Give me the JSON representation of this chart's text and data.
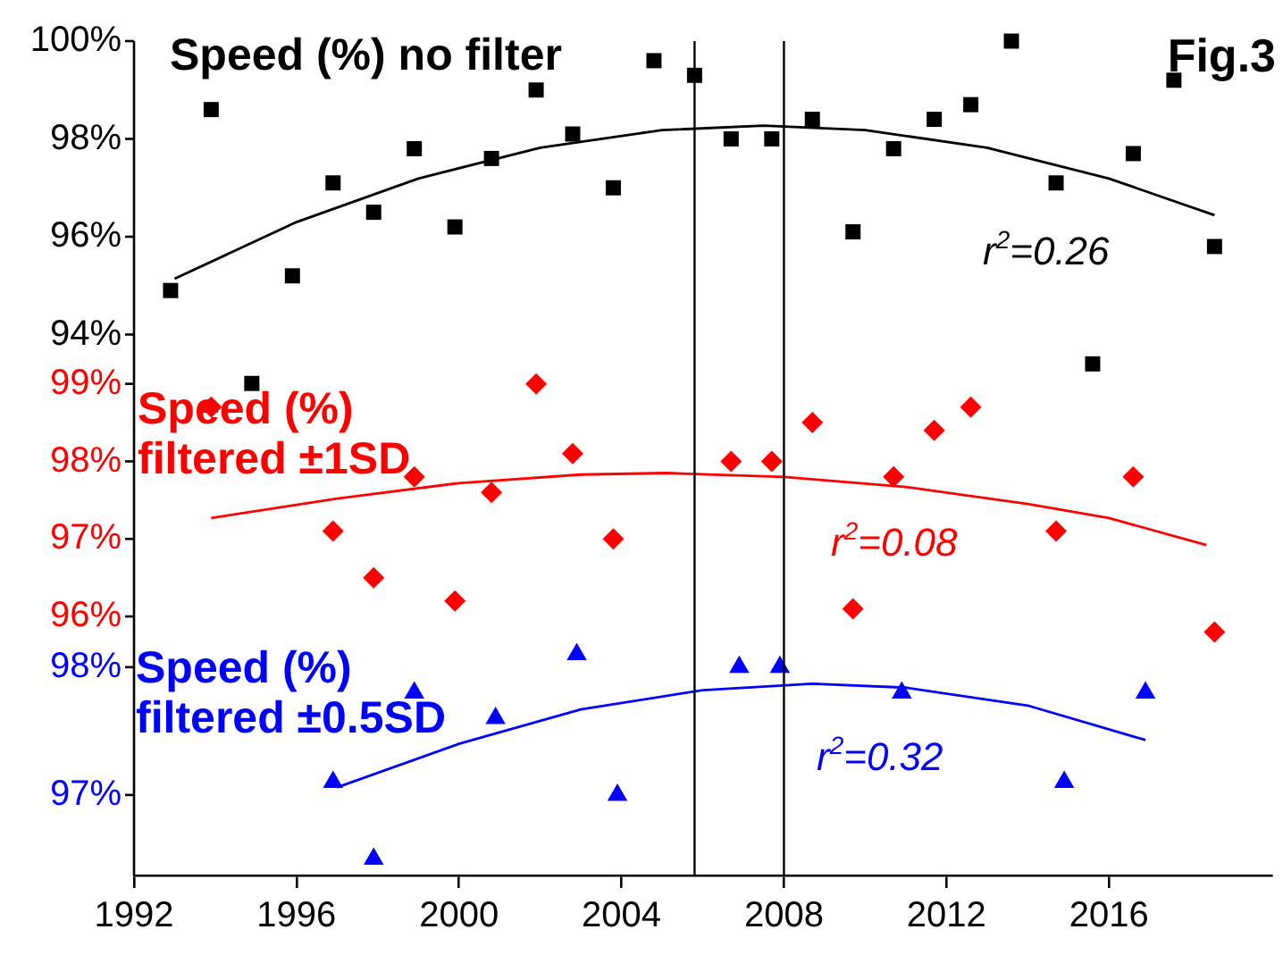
{
  "chart_data": {
    "type": "scatter",
    "xlim": [
      1992,
      2020
    ],
    "xticks": [
      1992,
      1996,
      2000,
      2004,
      2008,
      2012,
      2016
    ],
    "ylim": [
      82.94,
      100
    ],
    "yticks": [
      {
        "value": 94,
        "label": "94%"
      },
      {
        "value": 96,
        "label": "96%"
      },
      {
        "value": 98,
        "label": "98%"
      },
      {
        "value": 100,
        "label": "100%"
      }
    ],
    "y2lim": [
      92.66,
      103.42
    ],
    "y2ticks": [
      {
        "value": 96,
        "label": "96%"
      },
      {
        "value": 97,
        "label": "97%"
      },
      {
        "value": 98,
        "label": "98%"
      },
      {
        "value": 99,
        "label": "99%"
      }
    ],
    "y3lim": [
      96.37,
      102.9
    ],
    "y3ticks": [
      {
        "value": 97,
        "label": "97%"
      },
      {
        "value": 98,
        "label": "98%"
      }
    ],
    "grid": false,
    "legend": false,
    "series": [
      {
        "name": "Speed (%) no filter",
        "type": "scatter",
        "axis": "y",
        "marker": "square",
        "color": "#000000",
        "x": [
          1992.9,
          1993.9,
          1994.9,
          1995.9,
          1996.9,
          1997.9,
          1998.9,
          1999.9,
          2000.8,
          2001.9,
          2002.8,
          2003.8,
          2004.8,
          2005.8,
          2006.7,
          2007.7,
          2008.7,
          2009.7,
          2010.7,
          2011.7,
          2012.6,
          2013.6,
          2014.7,
          2015.6,
          2016.6,
          2017.6,
          2018.6
        ],
        "values": [
          94.9,
          98.6,
          93.0,
          95.2,
          97.1,
          96.5,
          97.8,
          96.2,
          97.6,
          99.0,
          98.1,
          97.0,
          99.6,
          99.3,
          98.0,
          98.0,
          98.4,
          96.1,
          97.8,
          98.4,
          98.7,
          100.0,
          97.1,
          93.4,
          97.7,
          99.2,
          95.8
        ]
      },
      {
        "type": "line",
        "axis": "y",
        "marker": "none",
        "color": "#000000",
        "x": [
          1993,
          1996,
          1999,
          2002,
          2005,
          2007.5,
          2010,
          2013,
          2016,
          2018.6
        ],
        "values": [
          95.14,
          96.3,
          97.19,
          97.82,
          98.18,
          98.27,
          98.18,
          97.82,
          97.19,
          96.44
        ]
      },
      {
        "name": "Speed (%) filtered ±1SD",
        "type": "scatter",
        "axis": "y2",
        "marker": "diamond",
        "color": "#ff0000",
        "x": [
          1993.9,
          1996.9,
          1997.9,
          1998.9,
          1999.9,
          2000.8,
          2001.9,
          2002.8,
          2003.8,
          2006.7,
          2007.7,
          2008.7,
          2009.7,
          2010.7,
          2011.7,
          2012.6,
          2014.7,
          2016.6,
          2018.6
        ],
        "values": [
          98.7,
          97.1,
          96.5,
          97.8,
          96.2,
          97.6,
          99.0,
          98.1,
          97.0,
          98.0,
          98.0,
          98.5,
          96.1,
          97.8,
          98.4,
          98.7,
          97.1,
          97.8,
          95.8
        ]
      },
      {
        "type": "line",
        "axis": "y2",
        "marker": "none",
        "color": "#ff0000",
        "x": [
          1993.9,
          1997,
          2000,
          2003,
          2005.1,
          2008,
          2011,
          2014,
          2016,
          2018.4
        ],
        "values": [
          97.27,
          97.52,
          97.72,
          97.83,
          97.85,
          97.8,
          97.67,
          97.45,
          97.27,
          96.92
        ]
      },
      {
        "name": "Speed (%) filtered ±0.5SD",
        "type": "scatter",
        "axis": "y3",
        "marker": "triangle",
        "color": "#0000ff",
        "x": [
          1996.9,
          1997.9,
          1998.9,
          2000.9,
          2002.9,
          2003.9,
          2006.9,
          2007.9,
          2010.9,
          2014.9,
          2016.9
        ],
        "values": [
          97.1,
          96.5,
          97.8,
          97.6,
          98.1,
          97.0,
          98.0,
          98.0,
          97.8,
          97.1,
          97.8
        ]
      },
      {
        "type": "line",
        "axis": "y3",
        "marker": "none",
        "color": "#0000ff",
        "x": [
          1997,
          2000,
          2003,
          2006,
          2008.7,
          2011,
          2014,
          2016.9
        ],
        "values": [
          97.06,
          97.4,
          97.67,
          97.82,
          97.87,
          97.84,
          97.7,
          97.43
        ]
      }
    ],
    "ref_lines": [
      {
        "axis": "x",
        "value": 2005.8,
        "color": "#000000"
      },
      {
        "axis": "x",
        "value": 2008,
        "color": "#000000"
      }
    ],
    "annotations": [
      "Fig.3",
      "r$^{2}$=0.26",
      "r$^{2}$=0.08",
      "r$^{2}$=0.32"
    ]
  }
}
